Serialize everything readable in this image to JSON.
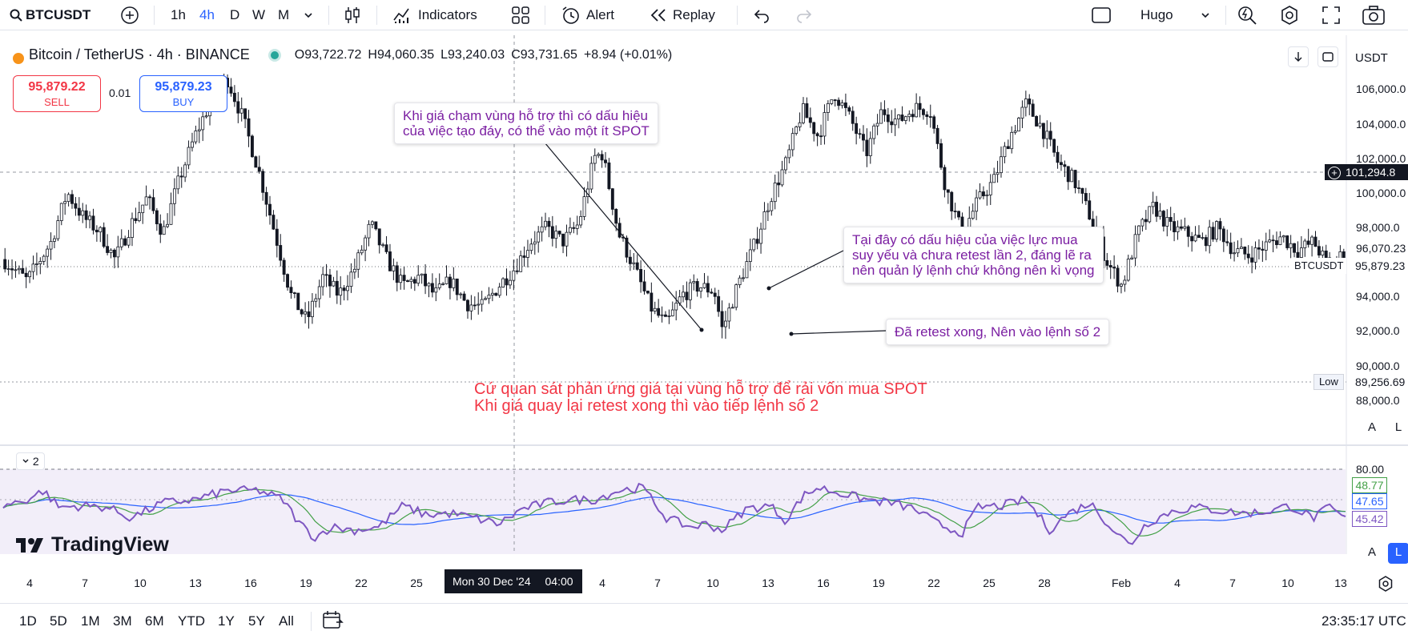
{
  "toolbar": {
    "symbol": "BTCUSDT",
    "intervals": [
      "1h",
      "4h",
      "D",
      "W",
      "M"
    ],
    "active_interval": "4h",
    "indicators_label": "Indicators",
    "alert_label": "Alert",
    "replay_label": "Replay",
    "layout_name": "Hugo"
  },
  "legend": {
    "title": "Bitcoin / TetherUS · 4h · BINANCE",
    "open": "O93,722.72",
    "high": "H94,060.35",
    "low": "L93,240.03",
    "close": "C93,731.65",
    "change": "+8.94 (+0.01%)"
  },
  "trade": {
    "sell_price": "95,879.22",
    "sell_label": "SELL",
    "spread": "0.01",
    "buy_price": "95,879.23",
    "buy_label": "BUY"
  },
  "annotations": {
    "callout1": [
      "Khi giá chạm vùng hỗ trợ thì có dấu hiệu",
      "của việc tạo đáy, có thể vào một ít SPOT"
    ],
    "callout2": [
      "Tại đây có dấu hiệu của việc lực mua",
      "suy yếu và chưa retest lần 2, đáng lẽ ra",
      "nên quản lý lệnh chứ không nên  kì vọng"
    ],
    "callout3": "Đã retest xong, Nên vào lệnh số 2",
    "red_text": [
      "Cứ quan sát phản ứng giá tại vùng hỗ trợ để rải vốn mua SPOT",
      "Khi giá quay lại retest xong thì vào tiếp lệnh số 2"
    ]
  },
  "price_scale": {
    "currency": "USDT",
    "labels": [
      "106,000.0",
      "104,000.0",
      "102,000.0",
      "100,000.0",
      "98,000.0",
      "96,070.23",
      "95,879.23",
      "94,000.0",
      "92,000.0",
      "90,000.0",
      "89,256.69",
      "88,000.0"
    ],
    "crosshair_price": "101,294.8",
    "last_price": "95,879.23",
    "symbol_tag": "BTCUSDT",
    "low_label": "Low",
    "low_price": "89,256.69",
    "auto_a": "A",
    "auto_l": "L"
  },
  "indicator": {
    "pane_number": "2",
    "scale_top": "80.00",
    "rsi": "48.77",
    "ma": "47.65",
    "low": "45.42",
    "brand": "TradingView"
  },
  "time_axis": {
    "labels": [
      "4",
      "7",
      "10",
      "13",
      "16",
      "19",
      "22",
      "25",
      "4",
      "7",
      "10",
      "13",
      "16",
      "19",
      "22",
      "25",
      "28",
      "Feb",
      "4",
      "7",
      "10",
      "13"
    ],
    "crosshair_date": "Mon 30 Dec '24",
    "crosshair_time": "04:00"
  },
  "bottom": {
    "ranges": [
      "1D",
      "5D",
      "1M",
      "3M",
      "6M",
      "YTD",
      "1Y",
      "5Y",
      "All"
    ],
    "clock": "23:35:17 UTC"
  },
  "colors": {
    "accent": "#2962ff",
    "sell": "#f23645",
    "annotation": "#7b1fa2",
    "rsi_line": "#7e57c2",
    "rsi_ma": "#43a047",
    "rsi_ma2": "#2962ff"
  },
  "chart_data": {
    "type": "candlestick",
    "symbol": "BTCUSDT",
    "interval": "4h",
    "ylim": [
      87500,
      107500
    ],
    "support_level": 89256.69,
    "crosshair_level": 101294.8,
    "price_path": [
      [
        0,
        96000
      ],
      [
        0.03,
        94800
      ],
      [
        0.06,
        97000
      ],
      [
        0.08,
        99800
      ],
      [
        0.1,
        98400
      ],
      [
        0.12,
        97600
      ],
      [
        0.14,
        96000
      ],
      [
        0.16,
        98000
      ],
      [
        0.18,
        99500
      ],
      [
        0.2,
        97500
      ],
      [
        0.22,
        100500
      ],
      [
        0.24,
        103000
      ],
      [
        0.26,
        105000
      ],
      [
        0.28,
        106300
      ],
      [
        0.3,
        104000
      ],
      [
        0.32,
        101000
      ],
      [
        0.34,
        97500
      ],
      [
        0.36,
        94000
      ],
      [
        0.38,
        92500
      ],
      [
        0.4,
        95000
      ],
      [
        0.42,
        94000
      ],
      [
        0.44,
        95500
      ],
      [
        0.46,
        98000
      ],
      [
        0.48,
        96000
      ],
      [
        0.5,
        94500
      ],
      [
        0.52,
        95000
      ],
      [
        0.54,
        94000
      ],
      [
        0.56,
        94800
      ],
      [
        0.58,
        93500
      ],
      [
        0.6,
        93300
      ],
      [
        0.62,
        94500
      ],
      [
        0.64,
        95500
      ],
      [
        0.66,
        97000
      ],
      [
        0.68,
        97800
      ],
      [
        0.7,
        97000
      ],
      [
        0.72,
        98000
      ],
      [
        0.74,
        101800
      ],
      [
        0.75,
        102000
      ],
      [
        0.77,
        97500
      ],
      [
        0.79,
        95500
      ],
      [
        0.81,
        93300
      ],
      [
        0.83,
        92300
      ],
      [
        0.85,
        94000
      ],
      [
        0.87,
        94500
      ],
      [
        0.89,
        94200
      ],
      [
        0.9,
        92000
      ],
      [
        0.92,
        94600
      ],
      [
        0.94,
        96800
      ],
      [
        0.96,
        99500
      ],
      [
        0.98,
        101500
      ],
      [
        1.0,
        104500
      ],
      [
        1.02,
        103000
      ],
      [
        1.04,
        105500
      ],
      [
        1.06,
        104000
      ],
      [
        1.08,
        102000
      ],
      [
        1.1,
        104500
      ],
      [
        1.12,
        103800
      ],
      [
        1.14,
        104600
      ],
      [
        1.16,
        104500
      ],
      [
        1.18,
        100000
      ],
      [
        1.2,
        97500
      ],
      [
        1.22,
        99300
      ],
      [
        1.24,
        100500
      ],
      [
        1.26,
        103000
      ],
      [
        1.28,
        104800
      ],
      [
        1.3,
        103500
      ],
      [
        1.32,
        101500
      ],
      [
        1.34,
        100500
      ],
      [
        1.36,
        98500
      ],
      [
        1.38,
        96000
      ],
      [
        1.4,
        94500
      ],
      [
        1.42,
        97500
      ],
      [
        1.44,
        99000
      ],
      [
        1.46,
        97800
      ],
      [
        1.48,
        97500
      ],
      [
        1.5,
        97000
      ],
      [
        1.52,
        97800
      ],
      [
        1.54,
        96500
      ],
      [
        1.56,
        96200
      ],
      [
        1.58,
        96800
      ],
      [
        1.6,
        97300
      ],
      [
        1.62,
        96500
      ],
      [
        1.64,
        97000
      ],
      [
        1.66,
        95500
      ],
      [
        1.68,
        96500
      ]
    ],
    "rsi_path": [
      [
        0,
        56
      ],
      [
        0.03,
        60
      ],
      [
        0.05,
        66
      ],
      [
        0.07,
        55
      ],
      [
        0.1,
        56
      ],
      [
        0.13,
        55
      ],
      [
        0.16,
        48
      ],
      [
        0.2,
        58
      ],
      [
        0.24,
        60
      ],
      [
        0.28,
        66
      ],
      [
        0.32,
        66
      ],
      [
        0.35,
        60
      ],
      [
        0.37,
        45
      ],
      [
        0.39,
        35
      ],
      [
        0.41,
        42
      ],
      [
        0.44,
        40
      ],
      [
        0.47,
        42
      ],
      [
        0.5,
        56
      ],
      [
        0.53,
        50
      ],
      [
        0.56,
        51
      ],
      [
        0.59,
        48
      ],
      [
        0.62,
        44
      ],
      [
        0.65,
        54
      ],
      [
        0.68,
        58
      ],
      [
        0.71,
        60
      ],
      [
        0.74,
        60
      ],
      [
        0.77,
        66
      ],
      [
        0.8,
        68
      ],
      [
        0.83,
        48
      ],
      [
        0.86,
        42
      ],
      [
        0.88,
        44
      ],
      [
        0.9,
        40
      ],
      [
        0.93,
        54
      ],
      [
        0.96,
        56
      ],
      [
        0.98,
        46
      ],
      [
        1.0,
        62
      ],
      [
        1.02,
        68
      ],
      [
        1.05,
        64
      ],
      [
        1.08,
        60
      ],
      [
        1.11,
        58
      ],
      [
        1.14,
        54
      ],
      [
        1.17,
        44
      ],
      [
        1.2,
        38
      ],
      [
        1.22,
        55
      ],
      [
        1.25,
        56
      ],
      [
        1.28,
        60
      ],
      [
        1.31,
        40
      ],
      [
        1.33,
        50
      ],
      [
        1.36,
        58
      ],
      [
        1.39,
        40
      ],
      [
        1.41,
        30
      ],
      [
        1.43,
        44
      ],
      [
        1.46,
        52
      ],
      [
        1.49,
        55
      ],
      [
        1.52,
        53
      ],
      [
        1.55,
        51
      ],
      [
        1.58,
        52
      ],
      [
        1.61,
        56
      ],
      [
        1.64,
        48
      ],
      [
        1.66,
        55
      ],
      [
        1.68,
        47
      ]
    ]
  }
}
